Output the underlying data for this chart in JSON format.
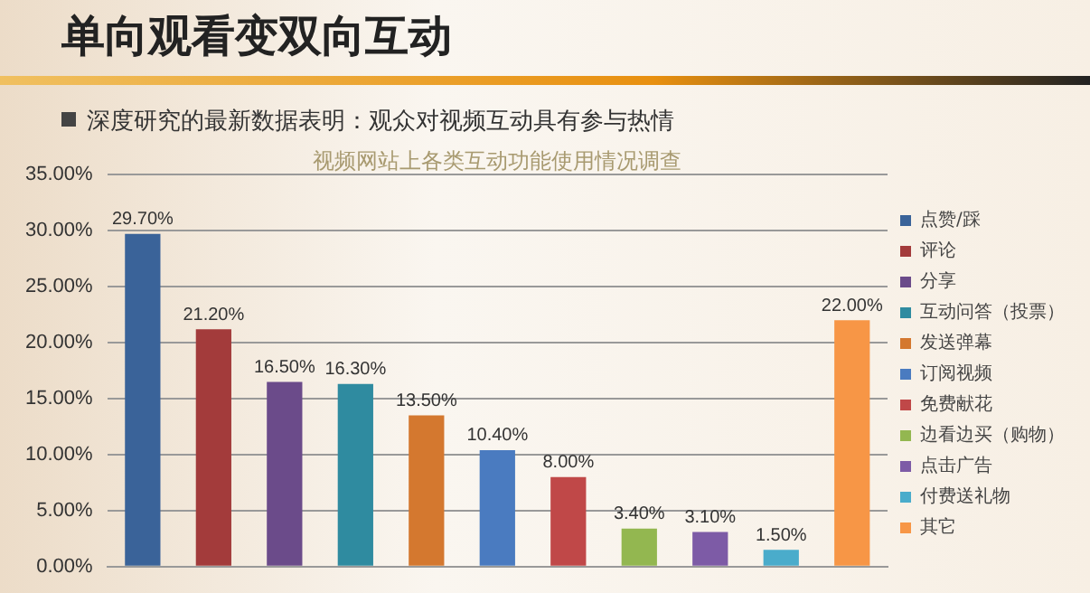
{
  "chart_data": {
    "type": "bar",
    "title": "单向观看变双向互动",
    "subtitle": "深度研究的最新数据表明：观众对视频互动具有参与热情",
    "annotations": [
      "视频网站上各类互动功能使用情况调查"
    ],
    "categories": [
      null,
      null,
      null,
      null,
      null,
      null,
      null,
      null,
      null,
      null,
      null
    ],
    "stacked": true,
    "legend": "right",
    "grid": "y",
    "tick_labels": "y",
    "ylim": [
      0,
      35
    ],
    "yticks": [
      {
        "value": 0,
        "label": "0.00%"
      },
      {
        "value": 5,
        "label": "5.00%"
      },
      {
        "value": 10,
        "label": "10.00%"
      },
      {
        "value": 15,
        "label": "15.00%"
      },
      {
        "value": 20,
        "label": "20.00%"
      },
      {
        "value": 25,
        "label": "25.00%"
      },
      {
        "value": 30,
        "label": "30.00%"
      },
      {
        "value": 35,
        "label": "35.00%"
      }
    ],
    "series": [
      {
        "name": "点赞/踩",
        "color": "#3a6399",
        "values": [
          29.7,
          null,
          null,
          null,
          null,
          null,
          null,
          null,
          null,
          null,
          null
        ],
        "value_labels": [
          "29.70%",
          null,
          null,
          null,
          null,
          null,
          null,
          null,
          null,
          null,
          null
        ]
      },
      {
        "name": "评论",
        "color": "#a33b3b",
        "values": [
          null,
          21.2,
          null,
          null,
          null,
          null,
          null,
          null,
          null,
          null,
          null
        ],
        "value_labels": [
          null,
          "21.20%",
          null,
          null,
          null,
          null,
          null,
          null,
          null,
          null,
          null
        ]
      },
      {
        "name": "分享",
        "color": "#6b4b8a",
        "values": [
          null,
          null,
          16.5,
          null,
          null,
          null,
          null,
          null,
          null,
          null,
          null
        ],
        "value_labels": [
          null,
          null,
          "16.50%",
          null,
          null,
          null,
          null,
          null,
          null,
          null,
          null
        ]
      },
      {
        "name": "互动问答（投票）",
        "color": "#2f8ba0",
        "values": [
          null,
          null,
          null,
          16.3,
          null,
          null,
          null,
          null,
          null,
          null,
          null
        ],
        "value_labels": [
          null,
          null,
          null,
          "16.30%",
          null,
          null,
          null,
          null,
          null,
          null,
          null
        ]
      },
      {
        "name": "发送弹幕",
        "color": "#d4782f",
        "values": [
          null,
          null,
          null,
          null,
          13.5,
          null,
          null,
          null,
          null,
          null,
          null
        ],
        "value_labels": [
          null,
          null,
          null,
          null,
          "13.50%",
          null,
          null,
          null,
          null,
          null,
          null
        ]
      },
      {
        "name": "订阅视频",
        "color": "#4a7bc0",
        "values": [
          null,
          null,
          null,
          null,
          null,
          10.4,
          null,
          null,
          null,
          null,
          null
        ],
        "value_labels": [
          null,
          null,
          null,
          null,
          null,
          "10.40%",
          null,
          null,
          null,
          null,
          null
        ]
      },
      {
        "name": "免费献花",
        "color": "#c04848",
        "values": [
          null,
          null,
          null,
          null,
          null,
          null,
          8.0,
          null,
          null,
          null,
          null
        ],
        "value_labels": [
          null,
          null,
          null,
          null,
          null,
          null,
          "8.00%",
          null,
          null,
          null,
          null
        ]
      },
      {
        "name": "边看边买（购物）",
        "color": "#93b750",
        "values": [
          null,
          null,
          null,
          null,
          null,
          null,
          null,
          3.4,
          null,
          null,
          null
        ],
        "value_labels": [
          null,
          null,
          null,
          null,
          null,
          null,
          null,
          "3.40%",
          null,
          null,
          null
        ]
      },
      {
        "name": "点击广告",
        "color": "#7d5ba6",
        "values": [
          null,
          null,
          null,
          null,
          null,
          null,
          null,
          null,
          3.1,
          null,
          null
        ],
        "value_labels": [
          null,
          null,
          null,
          null,
          null,
          null,
          null,
          null,
          "3.10%",
          null,
          null
        ]
      },
      {
        "name": "付费送礼物",
        "color": "#4aaccb",
        "values": [
          null,
          null,
          null,
          null,
          null,
          null,
          null,
          null,
          null,
          1.5,
          null
        ],
        "value_labels": [
          null,
          null,
          null,
          null,
          null,
          null,
          null,
          null,
          null,
          "1.50%",
          null
        ]
      },
      {
        "name": "其它",
        "color": "#f79646",
        "values": [
          null,
          null,
          null,
          null,
          null,
          null,
          null,
          null,
          null,
          null,
          22.0
        ],
        "value_labels": [
          null,
          null,
          null,
          null,
          null,
          null,
          null,
          null,
          null,
          null,
          "22.00%"
        ]
      }
    ]
  }
}
